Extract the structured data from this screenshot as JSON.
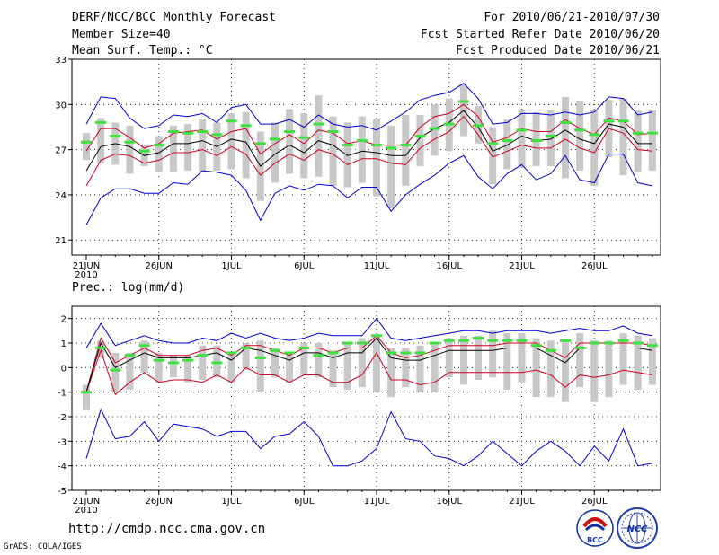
{
  "header": {
    "title": "DERF/NCC/BCC Monthly Forecast",
    "member": "Member Size=40",
    "variable": "Mean Surf. Temp.: °C",
    "period": "For 2010/06/21-2010/07/30",
    "refer": "Fcst Started Refer Date 2010/06/20",
    "produced": "Fcst Produced Date 2010/06/21"
  },
  "footer": {
    "url": "http://cmdp.ncc.cma.gov.cn",
    "grads": "GrADS: COLA/IGES",
    "logo1_text": "BCC",
    "logo2_text": "NCC"
  },
  "colors": {
    "max_min": "#0000d0",
    "spread": "#d00020",
    "mean": "#000000",
    "box": "#c8c8c8",
    "median": "#40e040"
  },
  "chart_data": [
    {
      "type": "line",
      "title": "Mean Surf. Temp.: °C",
      "x_days": 40,
      "xticks": [
        {
          "day": 0,
          "label": "21JUN",
          "sub": "2010"
        },
        {
          "day": 5,
          "label": "26JUN"
        },
        {
          "day": 10,
          "label": "1JUL"
        },
        {
          "day": 15,
          "label": "6JUL"
        },
        {
          "day": 20,
          "label": "11JUL"
        },
        {
          "day": 25,
          "label": "16JUL"
        },
        {
          "day": 30,
          "label": "21JUL"
        },
        {
          "day": 35,
          "label": "26JUL"
        }
      ],
      "ylim": [
        20,
        33
      ],
      "yticks": [
        21,
        24,
        27,
        30,
        33
      ],
      "series": [
        {
          "name": "max",
          "values": [
            28.7,
            30.5,
            30.4,
            29.1,
            28.4,
            28.6,
            29.3,
            29.2,
            29.4,
            28.8,
            29.8,
            30.0,
            28.7,
            28.7,
            29.0,
            28.5,
            29.3,
            28.7,
            28.5,
            28.6,
            28.3,
            28.9,
            29.5,
            30.3,
            30.6,
            30.8,
            31.4,
            30.4,
            28.7,
            28.8,
            29.4,
            29.4,
            29.3,
            29.5,
            29.3,
            29.5,
            30.5,
            30.4,
            29.3,
            29.5
          ]
        },
        {
          "name": "upper",
          "values": [
            26.9,
            28.4,
            28.4,
            27.8,
            27.1,
            27.4,
            28.1,
            28.2,
            28.3,
            27.7,
            28.2,
            28.4,
            26.7,
            27.4,
            28.0,
            27.4,
            28.3,
            28.1,
            27.4,
            27.6,
            27.3,
            27.3,
            27.3,
            28.5,
            29.2,
            29.4,
            30.0,
            29.2,
            27.5,
            27.8,
            28.4,
            28.2,
            28.2,
            29.0,
            28.4,
            28.0,
            29.1,
            28.9,
            28.0,
            28.1
          ]
        },
        {
          "name": "mean",
          "values": [
            25.6,
            27.2,
            27.4,
            27.2,
            26.6,
            26.8,
            27.4,
            27.4,
            27.6,
            27.2,
            27.7,
            27.5,
            25.9,
            26.7,
            27.3,
            26.8,
            27.6,
            27.3,
            26.6,
            26.9,
            26.8,
            26.6,
            26.6,
            27.8,
            28.4,
            28.8,
            29.6,
            28.5,
            26.9,
            27.3,
            27.9,
            27.6,
            27.7,
            28.3,
            27.7,
            27.4,
            28.7,
            28.5,
            27.4,
            27.4
          ]
        },
        {
          "name": "lower",
          "values": [
            24.6,
            26.3,
            26.7,
            26.6,
            26.1,
            26.3,
            26.8,
            26.8,
            27.0,
            26.6,
            27.2,
            26.7,
            25.3,
            26.1,
            26.7,
            26.3,
            27.0,
            26.7,
            26.0,
            26.4,
            26.4,
            26.1,
            26.0,
            27.1,
            27.7,
            28.2,
            29.2,
            28.0,
            26.5,
            26.9,
            27.3,
            27.1,
            27.1,
            27.7,
            27.1,
            26.8,
            28.4,
            28.1,
            27.0,
            26.9
          ]
        },
        {
          "name": "min",
          "values": [
            22.0,
            23.8,
            24.4,
            24.4,
            24.1,
            24.1,
            24.8,
            24.7,
            25.6,
            25.5,
            25.3,
            24.3,
            22.3,
            24.1,
            24.6,
            24.3,
            24.7,
            24.6,
            23.8,
            24.5,
            24.5,
            22.9,
            24.0,
            24.7,
            25.3,
            26.1,
            26.6,
            25.2,
            24.4,
            25.4,
            26.0,
            25.0,
            25.4,
            26.6,
            25.0,
            24.8,
            26.7,
            26.7,
            24.8,
            24.6
          ]
        },
        {
          "name": "box_top",
          "values": [
            28.1,
            29.1,
            28.8,
            28.6,
            27.3,
            27.9,
            28.6,
            28.7,
            29.0,
            28.8,
            29.4,
            29.5,
            28.2,
            28.8,
            29.7,
            29.4,
            30.6,
            29.2,
            28.8,
            29.2,
            29.0,
            28.6,
            29.3,
            29.3,
            30.0,
            30.4,
            31.3,
            29.9,
            28.5,
            29.0,
            29.6,
            29.5,
            29.6,
            30.5,
            30.2,
            29.6,
            30.3,
            30.4,
            29.6,
            29.6
          ]
        },
        {
          "name": "box_bottom",
          "values": [
            26.3,
            26.1,
            26.0,
            25.4,
            25.9,
            25.5,
            25.5,
            25.6,
            25.5,
            25.6,
            25.7,
            25.1,
            23.6,
            24.8,
            25.4,
            25.1,
            25.2,
            24.6,
            24.5,
            24.8,
            23.9,
            23.1,
            24.6,
            25.9,
            26.6,
            26.9,
            27.9,
            27.4,
            24.7,
            25.7,
            25.8,
            25.9,
            25.9,
            25.1,
            25.6,
            24.6,
            26.5,
            25.3,
            25.5,
            25.6
          ]
        },
        {
          "name": "median",
          "values": [
            27.5,
            28.8,
            27.9,
            27.5,
            26.9,
            27.3,
            28.2,
            28.1,
            28.2,
            28.0,
            28.9,
            28.6,
            27.4,
            27.7,
            28.2,
            27.8,
            28.7,
            28.2,
            27.3,
            27.6,
            27.3,
            27.1,
            27.3,
            27.9,
            28.4,
            28.7,
            30.2,
            28.6,
            27.4,
            27.6,
            28.3,
            27.6,
            27.9,
            28.8,
            28.3,
            28.0,
            28.9,
            28.9,
            28.1,
            28.1
          ]
        }
      ]
    },
    {
      "type": "line",
      "title": "Prec.: log(mm/d)",
      "x_days": 40,
      "xticks": [
        {
          "day": 0,
          "label": "21JUN",
          "sub": "2010"
        },
        {
          "day": 5,
          "label": "26JUN"
        },
        {
          "day": 10,
          "label": "1JUL"
        },
        {
          "day": 15,
          "label": "6JUL"
        },
        {
          "day": 20,
          "label": "11JUL"
        },
        {
          "day": 25,
          "label": "16JUL"
        },
        {
          "day": 30,
          "label": "21JUL"
        },
        {
          "day": 35,
          "label": "26JUL"
        }
      ],
      "ylim": [
        -5,
        2.5
      ],
      "yticks": [
        -5,
        -4,
        -3,
        -2,
        -1,
        0,
        1,
        2
      ],
      "series": [
        {
          "name": "max",
          "values": [
            0.8,
            1.8,
            0.9,
            1.1,
            1.3,
            1.1,
            1.0,
            1.0,
            1.2,
            1.1,
            1.4,
            1.2,
            1.4,
            1.2,
            1.1,
            1.2,
            1.4,
            1.3,
            1.3,
            1.3,
            2.0,
            1.2,
            1.1,
            1.2,
            1.3,
            1.4,
            1.5,
            1.5,
            1.4,
            1.5,
            1.5,
            1.5,
            1.4,
            1.5,
            1.6,
            1.5,
            1.5,
            1.7,
            1.4,
            1.3
          ]
        },
        {
          "name": "upper",
          "values": [
            -1.0,
            1.2,
            0.2,
            0.5,
            0.8,
            0.5,
            0.5,
            0.5,
            0.7,
            0.8,
            0.5,
            0.9,
            0.9,
            0.7,
            0.5,
            0.8,
            0.8,
            0.6,
            0.8,
            0.8,
            1.3,
            0.6,
            0.4,
            0.5,
            0.7,
            0.9,
            0.9,
            0.9,
            0.9,
            1.0,
            1.0,
            1.0,
            0.7,
            0.4,
            1.0,
            1.0,
            1.0,
            1.0,
            1.0,
            0.9
          ]
        },
        {
          "name": "mean",
          "values": [
            -1.0,
            1.0,
            0.0,
            0.3,
            0.6,
            0.4,
            0.4,
            0.4,
            0.5,
            0.6,
            0.3,
            0.8,
            0.7,
            0.5,
            0.3,
            0.6,
            0.6,
            0.4,
            0.6,
            0.6,
            1.2,
            0.4,
            0.3,
            0.3,
            0.5,
            0.7,
            0.7,
            0.7,
            0.7,
            0.8,
            0.8,
            0.8,
            0.5,
            0.2,
            0.8,
            0.8,
            0.8,
            0.8,
            0.8,
            0.7
          ]
        },
        {
          "name": "lower",
          "values": [
            -1.0,
            0.7,
            -1.1,
            -0.6,
            -0.2,
            -0.6,
            -0.5,
            -0.5,
            -0.6,
            -0.3,
            -0.6,
            0.0,
            -0.3,
            -0.3,
            -0.6,
            -0.3,
            -0.3,
            -0.6,
            -0.6,
            -0.3,
            0.6,
            -0.5,
            -0.5,
            -0.7,
            -0.6,
            -0.2,
            -0.2,
            -0.2,
            -0.2,
            -0.2,
            -0.2,
            -0.1,
            -0.3,
            -0.8,
            -0.3,
            -0.4,
            -0.3,
            -0.1,
            -0.2,
            -0.3
          ]
        },
        {
          "name": "min",
          "values": [
            -3.7,
            -1.7,
            -2.9,
            -2.8,
            -2.2,
            -3.0,
            -2.3,
            -2.4,
            -2.5,
            -2.8,
            -2.6,
            -2.6,
            -3.3,
            -2.8,
            -2.7,
            -2.2,
            -2.8,
            -4.0,
            -4.0,
            -3.8,
            -3.3,
            -1.8,
            -2.9,
            -3.0,
            -3.6,
            -3.7,
            -4.0,
            -3.6,
            -3.0,
            -3.5,
            -4.0,
            -3.4,
            -3.0,
            -3.4,
            -4.0,
            -3.2,
            -3.8,
            -2.5,
            -4.0,
            -3.9
          ]
        },
        {
          "name": "box_top",
          "values": [
            -0.7,
            1.1,
            0.6,
            0.6,
            1.1,
            0.6,
            0.5,
            0.5,
            0.9,
            0.9,
            0.6,
            1.0,
            1.1,
            0.8,
            0.6,
            1.0,
            1.0,
            0.7,
            1.0,
            1.2,
            1.3,
            0.8,
            0.8,
            0.9,
            1.0,
            1.2,
            1.3,
            1.3,
            1.5,
            1.4,
            1.4,
            1.2,
            1.1,
            1.1,
            1.4,
            1.1,
            1.1,
            1.4,
            1.3,
            1.2
          ]
        },
        {
          "name": "box_bottom",
          "values": [
            -1.7,
            0.4,
            -1.0,
            -0.9,
            -0.2,
            -0.6,
            -0.4,
            -0.6,
            -0.5,
            -0.4,
            -0.6,
            -0.1,
            -1.0,
            -0.4,
            -0.6,
            -0.3,
            -0.4,
            -0.8,
            -0.9,
            -0.8,
            -1.0,
            -1.2,
            -0.8,
            -1.0,
            -1.0,
            -0.4,
            -0.7,
            -0.5,
            -0.4,
            -0.9,
            -0.6,
            -1.2,
            -1.2,
            -1.4,
            -0.8,
            -1.4,
            -1.2,
            -0.7,
            -0.9,
            -0.7
          ]
        },
        {
          "name": "median",
          "values": [
            -1.0,
            0.8,
            -0.1,
            0.5,
            0.9,
            0.3,
            0.2,
            0.3,
            0.5,
            0.2,
            0.6,
            0.8,
            0.4,
            0.7,
            0.6,
            0.8,
            0.5,
            0.6,
            1.0,
            1.0,
            1.3,
            0.6,
            0.6,
            0.6,
            1.0,
            1.1,
            1.1,
            1.2,
            1.1,
            1.1,
            1.1,
            0.9,
            0.7,
            1.1,
            0.8,
            1.0,
            1.0,
            1.1,
            1.0,
            0.9
          ]
        }
      ]
    }
  ]
}
